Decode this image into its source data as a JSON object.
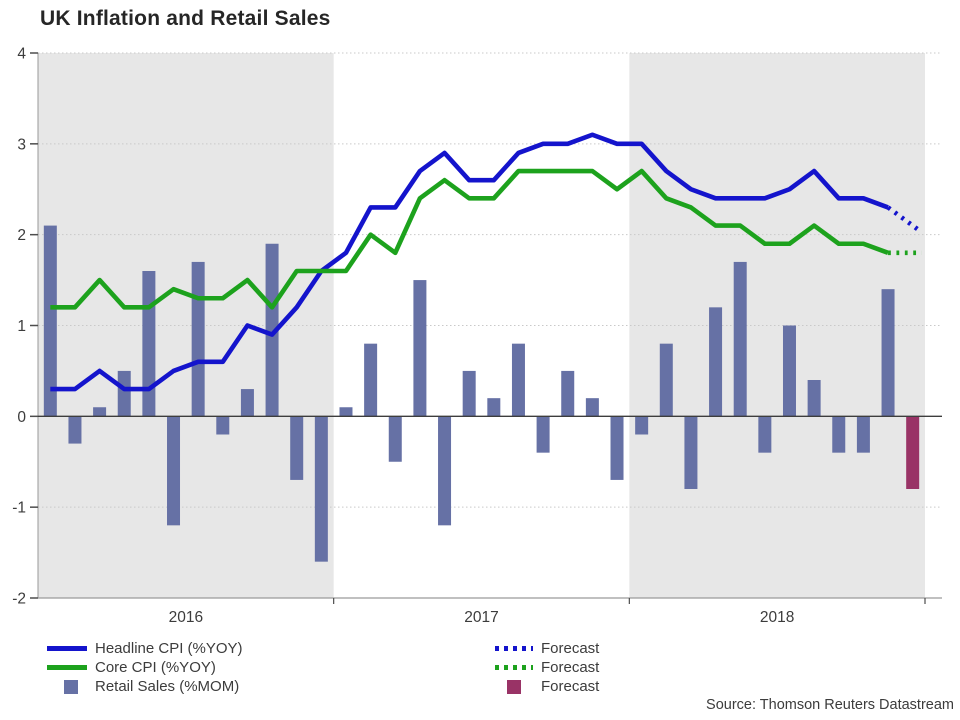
{
  "title": "UK Inflation and Retail Sales",
  "source": "Source: Thomson Reuters Datastream",
  "colors": {
    "band": "#e7e7e7",
    "grid": "#c9c9c9",
    "axis": "#9a9a9a",
    "tick": "#4d4d4d",
    "zero_line": "#3d3d3d",
    "text": "#3c3c3c"
  },
  "y_axis": {
    "ticks": [
      4,
      3,
      2,
      1,
      0,
      -1,
      -2
    ],
    "tick_labels": [
      "4",
      "3",
      "2",
      "1",
      "0",
      "-1",
      "-2"
    ],
    "min": -2,
    "max": 4
  },
  "x_axis": {
    "year_labels": [
      "2016",
      "2017",
      "2018"
    ]
  },
  "legend": {
    "headline_label": "Headline CPI (%YOY)",
    "core_label": "Core CPI (%YOY)",
    "retail_label": "Retail Sales (%MOM)",
    "forecast_label": "Forecast"
  },
  "chart_data": {
    "type": "bar+line combo",
    "title": "UK Inflation and Retail Sales",
    "xlabel": "",
    "ylabel": "",
    "ylim": [
      -2,
      4
    ],
    "grid": "horizontal dotted gridlines at integers; alternating year background bands (2016 and 2018 shaded grey)",
    "legend_position": "bottom",
    "x": [
      "2016-01",
      "2016-02",
      "2016-03",
      "2016-04",
      "2016-05",
      "2016-06",
      "2016-07",
      "2016-08",
      "2016-09",
      "2016-10",
      "2016-11",
      "2016-12",
      "2017-01",
      "2017-02",
      "2017-03",
      "2017-04",
      "2017-05",
      "2017-06",
      "2017-07",
      "2017-08",
      "2017-09",
      "2017-10",
      "2017-11",
      "2017-12",
      "2018-01",
      "2018-02",
      "2018-03",
      "2018-04",
      "2018-05",
      "2018-06",
      "2018-07",
      "2018-08",
      "2018-09",
      "2018-10",
      "2018-11",
      "2018-12"
    ],
    "x_year_labels": [
      "2016",
      "2017",
      "2018"
    ],
    "series": [
      {
        "name": "Headline CPI (%YOY)",
        "type": "line",
        "color": "#1414cc",
        "forecast_start_index": 34,
        "forecast_style": "dotted",
        "values": [
          0.3,
          0.3,
          0.5,
          0.3,
          0.3,
          0.5,
          0.6,
          0.6,
          1.0,
          0.9,
          1.2,
          1.6,
          1.8,
          2.3,
          2.3,
          2.7,
          2.9,
          2.6,
          2.6,
          2.9,
          3.0,
          3.0,
          3.1,
          3.0,
          3.0,
          2.7,
          2.5,
          2.4,
          2.4,
          2.4,
          2.5,
          2.7,
          2.4,
          2.4,
          2.3,
          2.1
        ]
      },
      {
        "name": "Core CPI (%YOY)",
        "type": "line",
        "color": "#1da21d",
        "forecast_start_index": 34,
        "forecast_style": "dotted",
        "values": [
          1.2,
          1.2,
          1.5,
          1.2,
          1.2,
          1.4,
          1.3,
          1.3,
          1.5,
          1.2,
          1.6,
          1.6,
          1.6,
          2.0,
          1.8,
          2.4,
          2.6,
          2.4,
          2.4,
          2.7,
          2.7,
          2.7,
          2.7,
          2.5,
          2.7,
          2.4,
          2.3,
          2.1,
          2.1,
          1.9,
          1.9,
          2.1,
          1.9,
          1.9,
          1.8,
          1.8
        ]
      },
      {
        "name": "Retail Sales (%MOM)",
        "type": "bar",
        "color": "#6671a5",
        "forecast_color": "#993366",
        "forecast_indices": [
          35
        ],
        "values": [
          2.1,
          -0.3,
          0.1,
          0.5,
          1.6,
          -1.2,
          1.7,
          -0.2,
          0.3,
          1.9,
          -0.7,
          -1.6,
          0.1,
          0.8,
          -0.5,
          1.5,
          -1.2,
          0.5,
          0.2,
          0.8,
          -0.4,
          0.5,
          0.2,
          -0.7,
          -0.2,
          0.8,
          -0.8,
          1.2,
          1.7,
          -0.4,
          1.0,
          0.4,
          -0.4,
          -0.4,
          1.4,
          -0.8
        ]
      }
    ]
  }
}
